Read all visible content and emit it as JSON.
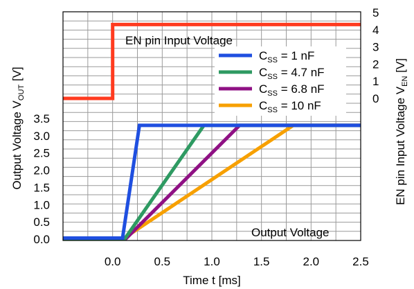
{
  "chart_data": {
    "type": "line",
    "xlabel": "Time t [ms]",
    "ylabel_left": "Output Voltage V_OUT [V]",
    "ylabel_right": "EN pin Input Voltage V_EN [V]",
    "xlim": [
      -0.5,
      2.5
    ],
    "ylim_left": [
      0,
      3.5
    ],
    "ylim_right": [
      0,
      5
    ],
    "x_ticks": [
      "0.0",
      "0.5",
      "1.0",
      "1.5",
      "2.0",
      "2.5"
    ],
    "y_ticks_left": [
      "0.0",
      "0.5",
      "1.0",
      "1.5",
      "2.0",
      "2.5",
      "3.0",
      "3.5"
    ],
    "y_ticks_right": [
      "0",
      "1",
      "2",
      "3",
      "4",
      "5"
    ],
    "grid": true,
    "annotations": {
      "en_label": "EN pin Input Voltage",
      "out_label": "Output  Voltage"
    },
    "series": [
      {
        "name": "C_SS = 1 nF",
        "axis": "left",
        "color": "#1f4fe0",
        "x": [
          -0.5,
          0.1,
          0.27,
          2.5
        ],
        "y": [
          0.03,
          0.03,
          3.3,
          3.3
        ]
      },
      {
        "name": "C_SS = 4.7 nF",
        "axis": "left",
        "color": "#2e9a62",
        "x": [
          -0.5,
          0.12,
          0.92,
          2.5
        ],
        "y": [
          0.0,
          0.0,
          3.3,
          3.3
        ]
      },
      {
        "name": "C_SS = 6.8 nF",
        "axis": "left",
        "color": "#8f1184",
        "x": [
          -0.5,
          0.13,
          1.28,
          2.5
        ],
        "y": [
          0.0,
          0.0,
          3.3,
          3.3
        ]
      },
      {
        "name": "C_SS = 10 nF",
        "axis": "left",
        "color": "#f7a000",
        "x": [
          -0.5,
          0.1,
          1.82,
          2.5
        ],
        "y": [
          0.0,
          0.0,
          3.3,
          3.3
        ]
      },
      {
        "name": "EN pin Input Voltage",
        "axis": "right",
        "color": "#ff3b1f",
        "x": [
          -0.5,
          0.0,
          0.0,
          2.5
        ],
        "y": [
          0.0,
          0.0,
          4.3,
          4.3
        ]
      }
    ],
    "legend": {
      "placement": "upper-right",
      "items": [
        {
          "prefix": "C",
          "sub": "SS",
          "value": " =    1 nF",
          "color": "#1f4fe0"
        },
        {
          "prefix": "C",
          "sub": "SS",
          "value": " = 4.7 nF",
          "color": "#2e9a62"
        },
        {
          "prefix": "C",
          "sub": "SS",
          "value": " = 6.8 nF",
          "color": "#8f1184"
        },
        {
          "prefix": "C",
          "sub": "SS",
          "value": " = 10  nF",
          "color": "#f7a000"
        }
      ]
    }
  }
}
